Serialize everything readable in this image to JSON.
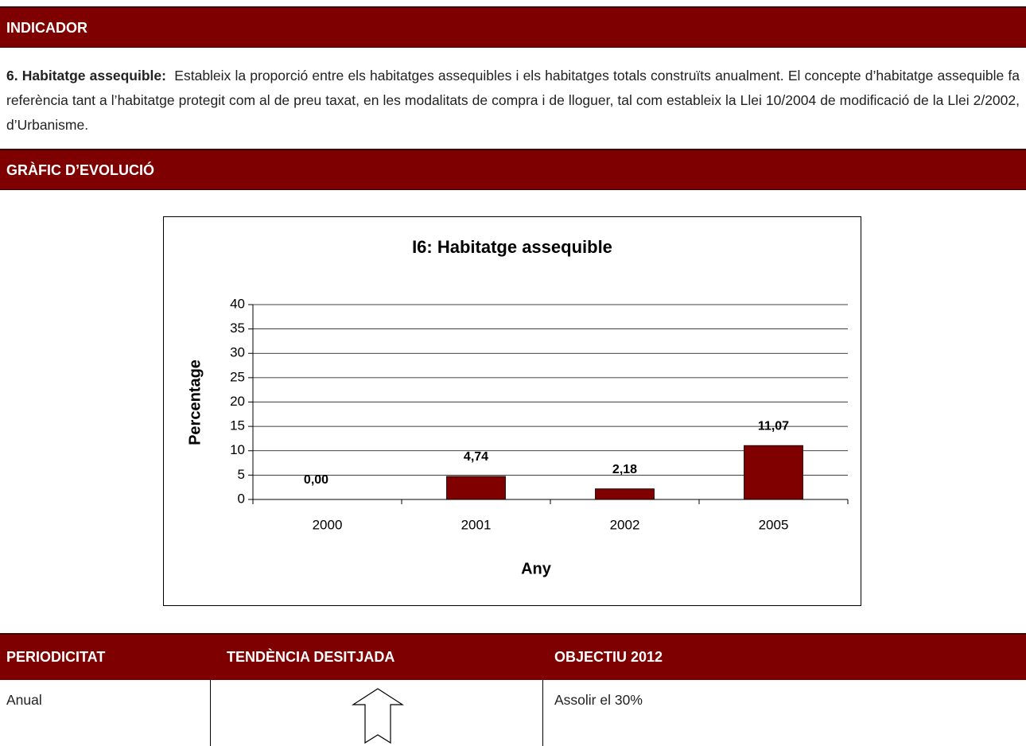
{
  "sections": {
    "indicator": "INDICADOR",
    "graph": "GRÀFIC D’EVOLUCIÓ"
  },
  "description": {
    "lead": "6. Habitatge assequible:",
    "text": "Estableix la proporció entre els habitatges assequibles i els habitatges totals construïts anualment. El concepte d’habitatge assequible fa referència tant a l’habitatge protegit com al de preu taxat, en les modalitats de compra i de lloguer, tal com estableix la Llei 10/2004 de modificació de la Llei 2/2002, d’Urbanisme."
  },
  "chart_data": {
    "type": "bar",
    "title": "I6: Habitatge assequible",
    "x_label": "Any",
    "y_label": "Percentage",
    "categories": [
      "2000",
      "2001",
      "2002",
      "2005"
    ],
    "values": [
      0,
      4.74,
      2.18,
      11.07
    ],
    "value_labels": [
      "0,00",
      "4,74",
      "2,18",
      "11,07"
    ],
    "color": "#800000",
    "ylim": [
      0,
      40
    ],
    "yticks": [
      0,
      5,
      10,
      15,
      20,
      25,
      30,
      35,
      40
    ],
    "grid": true
  },
  "table": {
    "headers": [
      "PERIODICITAT",
      "TENDÈNCIA DESITJADA",
      "OBJECTIU 2012"
    ],
    "row": [
      "Anual",
      "Assolir el 30%"
    ]
  }
}
